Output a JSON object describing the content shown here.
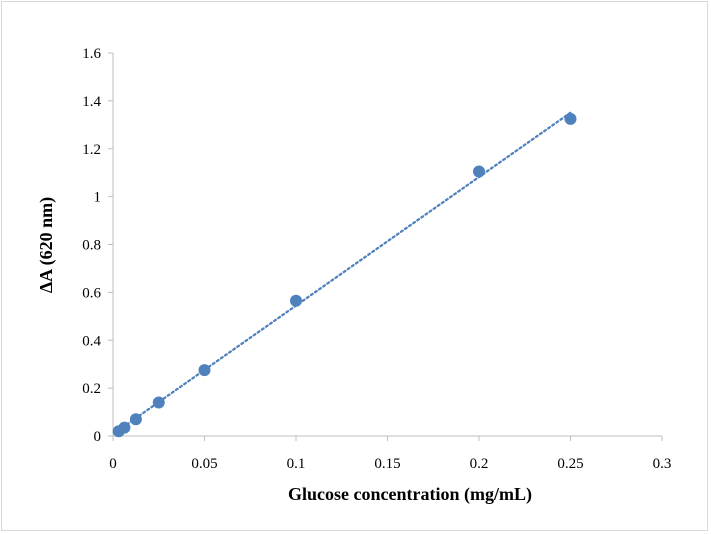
{
  "chart_data": {
    "type": "scatter",
    "title": "",
    "xlabel": "Glucose concentration (mg/mL)",
    "ylabel": "ΔA (620 nm)",
    "xlim": [
      0,
      0.3
    ],
    "ylim": [
      0,
      1.6
    ],
    "x_ticks": [
      "0",
      "0.05",
      "0.1",
      "0.15",
      "0.2",
      "0.25",
      "0.3"
    ],
    "y_ticks": [
      "0",
      "0.2",
      "0.4",
      "0.6",
      "0.8",
      "1",
      "1.2",
      "1.4",
      "1.6"
    ],
    "grid": false,
    "legend": "none",
    "series": [
      {
        "x": [
          0.003125,
          0.00625,
          0.0125,
          0.025,
          0.05,
          0.1,
          0.2,
          0.25
        ],
        "y": [
          0.02,
          0.035,
          0.07,
          0.14,
          0.275,
          0.565,
          1.105,
          1.325
        ],
        "color": "#4f81bd",
        "marker": "circle"
      }
    ],
    "trendline": {
      "type": "linear",
      "style": "dotted",
      "color": "#4f81bd",
      "x_range": [
        0.003125,
        0.25
      ]
    }
  }
}
